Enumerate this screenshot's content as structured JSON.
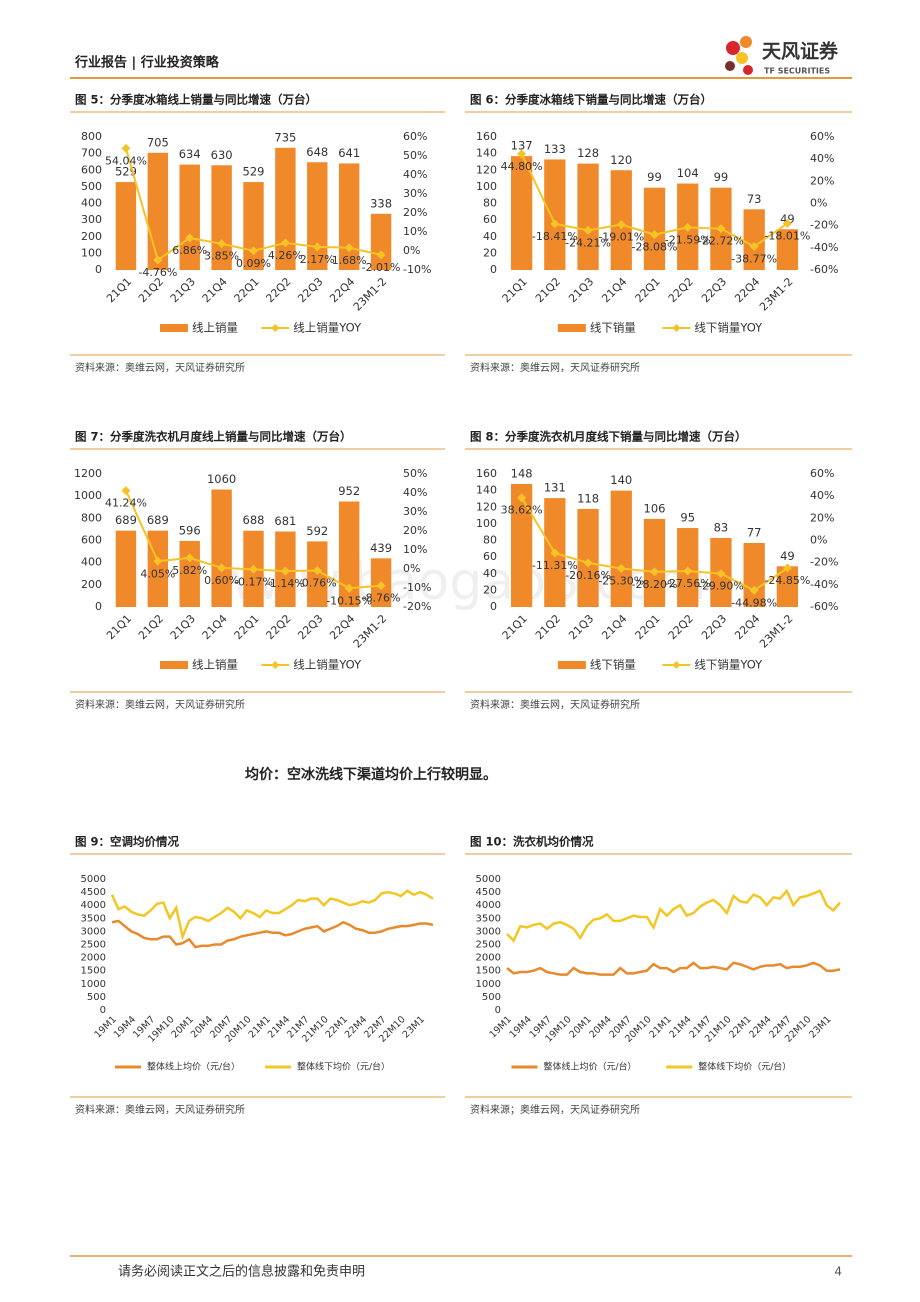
{
  "header": {
    "title": "行业报告 | 行业投资策略",
    "logo": "天风证券",
    "logo_sub": "TF SECURITIES"
  },
  "watermark": "www.baogao8.com",
  "section_text": "均价：空冰洗线下渠道均价上行较明显。",
  "footer": {
    "disclaimer": "请务必阅读正文之后的信息披露和免责申明",
    "page": 4
  },
  "chart_data": [
    {
      "type": "combo",
      "title": "图 5：分季度冰箱线上销量与同比增速（万台）",
      "source": "资料来源：奥维云网，天风证券研究所",
      "categories": [
        "21Q1",
        "21Q2",
        "21Q3",
        "21Q4",
        "22Q1",
        "22Q2",
        "22Q3",
        "22Q4",
        "23M1-2"
      ],
      "ylim": [
        0,
        800
      ],
      "yticks": [
        0,
        100,
        200,
        300,
        400,
        500,
        600,
        700,
        800
      ],
      "y2lim": [
        -10,
        60
      ],
      "y2ticks": [
        {
          "value": -10,
          "label": "-10%"
        },
        {
          "value": 0,
          "label": "0%"
        },
        {
          "value": 10,
          "label": "10%"
        },
        {
          "value": 20,
          "label": "20%"
        },
        {
          "value": 30,
          "label": "30%"
        },
        {
          "value": 40,
          "label": "40%"
        },
        {
          "value": 50,
          "label": "50%"
        },
        {
          "value": 60,
          "label": "60%"
        }
      ],
      "series": [
        {
          "name": "线上销量",
          "type": "bar",
          "color": "#f0892a",
          "values": [
            529,
            705,
            634,
            630,
            529,
            735,
            648,
            641,
            338
          ]
        },
        {
          "name": "线上销量YOY",
          "type": "line",
          "axis": "y2",
          "color": "#f6c327",
          "values": [
            54.04,
            -4.76,
            6.86,
            3.85,
            0.09,
            4.26,
            2.17,
            1.68,
            -2.01
          ],
          "value_labels": [
            "54.04%",
            "-4.76%",
            "6.86%",
            "3.85%",
            "0.09%",
            "4.26%",
            "2.17%",
            "1.68%",
            "-2.01%"
          ]
        }
      ]
    },
    {
      "type": "combo",
      "title": "图 6：分季度冰箱线下销量与同比增速（万台）",
      "source": "资料来源：奥维云网，天风证券研究所",
      "categories": [
        "21Q1",
        "21Q2",
        "21Q3",
        "21Q4",
        "22Q1",
        "22Q2",
        "22Q3",
        "22Q4",
        "23M1-2"
      ],
      "ylim": [
        0,
        160
      ],
      "yticks": [
        0,
        20,
        40,
        60,
        80,
        100,
        120,
        140,
        160
      ],
      "y2lim": [
        -60,
        60
      ],
      "y2ticks": [
        {
          "value": -60,
          "label": "-60%"
        },
        {
          "value": -40,
          "label": "-40%"
        },
        {
          "value": -20,
          "label": "-20%"
        },
        {
          "value": 0,
          "label": "0%"
        },
        {
          "value": 20,
          "label": "20%"
        },
        {
          "value": 40,
          "label": "40%"
        },
        {
          "value": 60,
          "label": "60%"
        }
      ],
      "series": [
        {
          "name": "线下销量",
          "type": "bar",
          "color": "#f0892a",
          "values": [
            137,
            133,
            128,
            120,
            99,
            104,
            99,
            73,
            49
          ]
        },
        {
          "name": "线下销量YOY",
          "type": "line",
          "axis": "y2",
          "color": "#f6c327",
          "values": [
            44.8,
            -18.41,
            -24.21,
            -19.01,
            -28.08,
            -21.59,
            -22.72,
            -38.77,
            -18.01
          ],
          "value_labels": [
            "44.80%",
            "-18.41%",
            "-24.21%",
            "-19.01%",
            "-28.08%",
            "-21.59%",
            "-22.72%",
            "-38.77%",
            "-18.01%"
          ]
        }
      ]
    },
    {
      "type": "combo",
      "title": "图 7：分季度洗衣机月度线上销量与同比增速（万台）",
      "source": "资料来源：奥维云网，天风证券研究所",
      "categories": [
        "21Q1",
        "21Q2",
        "21Q3",
        "21Q4",
        "22Q1",
        "22Q2",
        "22Q3",
        "22Q4",
        "23M1-2"
      ],
      "ylim": [
        0,
        1200
      ],
      "yticks": [
        0,
        200,
        400,
        600,
        800,
        1000,
        1200
      ],
      "y2lim": [
        -20,
        50
      ],
      "y2ticks": [
        {
          "value": -20,
          "label": "-20%"
        },
        {
          "value": -10,
          "label": "-10%"
        },
        {
          "value": 0,
          "label": "0%"
        },
        {
          "value": 10,
          "label": "10%"
        },
        {
          "value": 20,
          "label": "20%"
        },
        {
          "value": 30,
          "label": "30%"
        },
        {
          "value": 40,
          "label": "40%"
        },
        {
          "value": 50,
          "label": "50%"
        }
      ],
      "series": [
        {
          "name": "线上销量",
          "type": "bar",
          "color": "#f0892a",
          "values": [
            689,
            689,
            596,
            1060,
            688,
            681,
            592,
            952,
            439
          ]
        },
        {
          "name": "线上销量YOY",
          "type": "line",
          "axis": "y2",
          "color": "#f6c327",
          "values": [
            41.24,
            4.05,
            5.82,
            0.6,
            -0.17,
            -1.14,
            -0.76,
            -10.15,
            -8.76
          ],
          "value_labels": [
            "41.24%",
            "4.05%",
            "5.82%",
            "0.60%",
            "-0.17%",
            "-1.14%",
            "-0.76%",
            "-10.15%",
            "-8.76%"
          ]
        }
      ]
    },
    {
      "type": "combo",
      "title": "图 8：分季度洗衣机月度线下销量与同比增速（万台）",
      "source": "资料来源：奥维云网，天风证券研究所",
      "categories": [
        "21Q1",
        "21Q2",
        "21Q3",
        "21Q4",
        "22Q1",
        "22Q2",
        "22Q3",
        "22Q4",
        "23M1-2"
      ],
      "ylim": [
        0,
        160
      ],
      "yticks": [
        0,
        20,
        40,
        60,
        80,
        100,
        120,
        140,
        160
      ],
      "y2lim": [
        -60,
        60
      ],
      "y2ticks": [
        {
          "value": -60,
          "label": "-60%"
        },
        {
          "value": -40,
          "label": "-40%"
        },
        {
          "value": -20,
          "label": "-20%"
        },
        {
          "value": 0,
          "label": "0%"
        },
        {
          "value": 20,
          "label": "20%"
        },
        {
          "value": 40,
          "label": "40%"
        },
        {
          "value": 60,
          "label": "60%"
        }
      ],
      "series": [
        {
          "name": "线下销量",
          "type": "bar",
          "color": "#f0892a",
          "values": [
            148,
            131,
            118,
            140,
            106,
            95,
            83,
            77,
            49
          ]
        },
        {
          "name": "线下销量YOY",
          "type": "line",
          "axis": "y2",
          "color": "#f6c327",
          "values": [
            38.62,
            -11.31,
            -20.16,
            -25.3,
            -28.2,
            -27.56,
            -29.9,
            -44.98,
            -24.85
          ],
          "value_labels": [
            "38.62%",
            "-11.31%",
            "-20.16%",
            "-25.30%",
            "-28.20%",
            "-27.56%",
            "-29.90%",
            "-44.98%",
            "-24.85%"
          ]
        }
      ]
    },
    {
      "type": "line",
      "title": "图 9：空调均价情况",
      "source": "资料来源：奥维云网，天风证券研究所",
      "categories": [
        "19M1",
        null,
        null,
        "19M4",
        null,
        null,
        "19M7",
        null,
        null,
        "19M10",
        null,
        null,
        "20M1",
        null,
        null,
        "20M4",
        null,
        null,
        "20M7",
        null,
        null,
        "20M10",
        null,
        null,
        "21M1",
        null,
        null,
        "21M4",
        null,
        null,
        "21M7",
        null,
        null,
        "21M10",
        null,
        null,
        "22M1",
        null,
        null,
        "22M4",
        null,
        null,
        "22M7",
        null,
        null,
        "22M10",
        null,
        null,
        "23M1",
        null,
        null
      ],
      "ylim": [
        0,
        5000
      ],
      "yticks": [
        0,
        500,
        1000,
        1500,
        2000,
        2500,
        3000,
        3500,
        4000,
        4500,
        5000
      ],
      "series": [
        {
          "name": "整体线上均价（元/台）",
          "color": "#e8892c",
          "values": [
            3350,
            3400,
            3200,
            3000,
            2900,
            2750,
            2700,
            2700,
            2800,
            2800,
            2500,
            2550,
            2700,
            2400,
            2450,
            2450,
            2500,
            2500,
            2650,
            2700,
            2800,
            2850,
            2900,
            2950,
            3000,
            2950,
            2950,
            2850,
            2900,
            3000,
            3100,
            3150,
            3200,
            3000,
            3100,
            3200,
            3350,
            3250,
            3100,
            3050,
            2950,
            2950,
            3000,
            3100,
            3150,
            3200,
            3200,
            3250,
            3300,
            3300,
            3250
          ]
        },
        {
          "name": "整体线下均价（元/台）",
          "color": "#f2c724",
          "values": [
            4400,
            3850,
            3950,
            3750,
            3650,
            3600,
            3800,
            4050,
            4100,
            3500,
            3900,
            2800,
            3400,
            3550,
            3500,
            3400,
            3550,
            3700,
            3900,
            3750,
            3500,
            3800,
            3700,
            3550,
            3800,
            3700,
            3700,
            3850,
            4000,
            4200,
            4150,
            4250,
            4250,
            4000,
            4250,
            4200,
            4100,
            4000,
            4050,
            4150,
            4100,
            4200,
            4450,
            4500,
            4450,
            4350,
            4550,
            4400,
            4500,
            4400,
            4250
          ]
        }
      ]
    },
    {
      "type": "line",
      "title": "图 10：洗衣机均价情况",
      "source": "资料来源；奥维云网，天风证券研究所",
      "categories": [
        "19M1",
        null,
        null,
        "19M4",
        null,
        null,
        "19M7",
        null,
        null,
        "19M10",
        null,
        null,
        "20M1",
        null,
        null,
        "20M4",
        null,
        null,
        "20M7",
        null,
        null,
        "20M10",
        null,
        null,
        "21M1",
        null,
        null,
        "21M4",
        null,
        null,
        "21M7",
        null,
        null,
        "21M10",
        null,
        null,
        "22M1",
        null,
        null,
        "22M4",
        null,
        null,
        "22M7",
        null,
        null,
        "22M10",
        null,
        null,
        "23M1",
        null,
        null
      ],
      "ylim": [
        0,
        5000
      ],
      "yticks": [
        0,
        500,
        1000,
        1500,
        2000,
        2500,
        3000,
        3500,
        4000,
        4500,
        5000
      ],
      "series": [
        {
          "name": "整体线上均价（元/台）",
          "color": "#e8892c",
          "values": [
            1600,
            1400,
            1450,
            1450,
            1500,
            1600,
            1450,
            1400,
            1350,
            1350,
            1600,
            1450,
            1400,
            1400,
            1350,
            1350,
            1350,
            1600,
            1400,
            1400,
            1450,
            1500,
            1750,
            1600,
            1600,
            1450,
            1600,
            1600,
            1800,
            1600,
            1600,
            1650,
            1600,
            1550,
            1800,
            1750,
            1650,
            1550,
            1650,
            1700,
            1700,
            1750,
            1600,
            1650,
            1650,
            1700,
            1800,
            1700,
            1500,
            1500,
            1550
          ]
        },
        {
          "name": "整体线下均价（元/台）",
          "color": "#f2c724",
          "values": [
            2900,
            2650,
            3200,
            3150,
            3250,
            3300,
            3100,
            3300,
            3350,
            3250,
            3100,
            2750,
            3200,
            3450,
            3500,
            3650,
            3400,
            3400,
            3500,
            3600,
            3550,
            3550,
            3150,
            3850,
            3600,
            3850,
            4000,
            3600,
            3700,
            3950,
            4100,
            4200,
            4000,
            3700,
            4350,
            4150,
            4100,
            4400,
            4300,
            4000,
            4300,
            4250,
            4550,
            4000,
            4300,
            4350,
            4450,
            4550,
            4000,
            3800,
            4100
          ]
        }
      ]
    }
  ]
}
